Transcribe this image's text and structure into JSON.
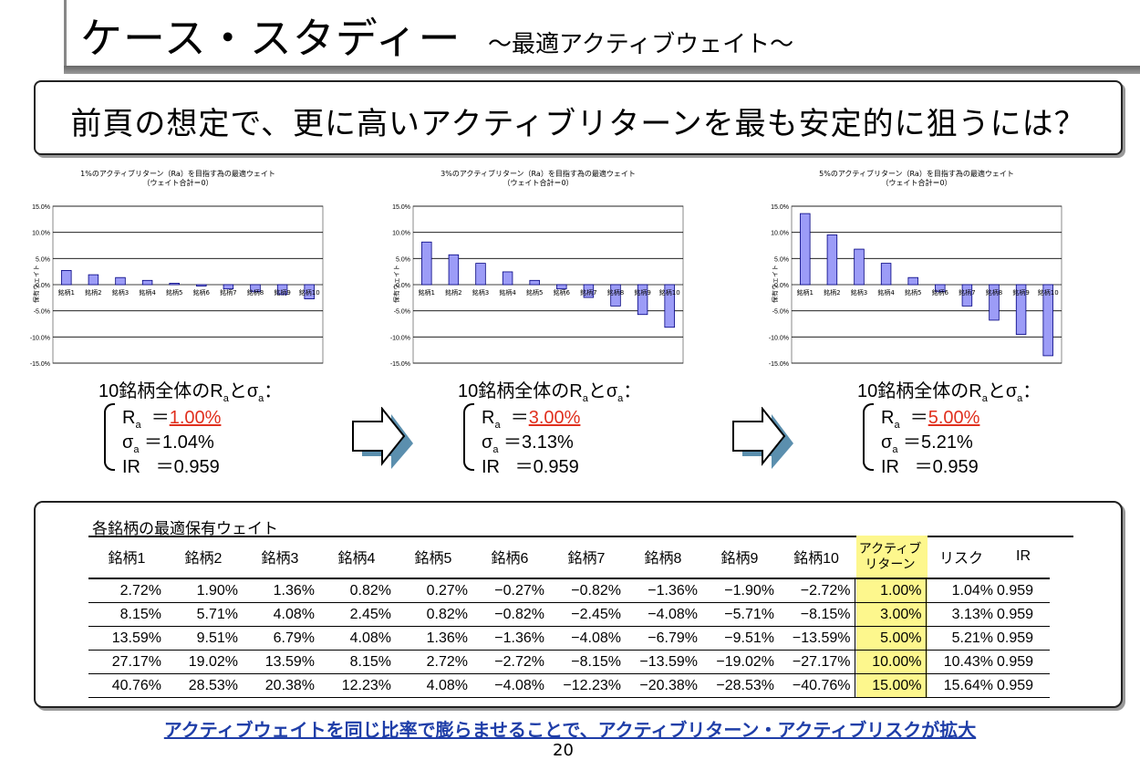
{
  "title": "ケース・スタディー",
  "subtitle": "～最適アクティブウェイト～",
  "question": "前頁の想定で、更に高いアクティブリターンを最も安定的に狙うには？",
  "chart_data": [
    {
      "type": "bar",
      "title": "1%のアクティブリターン（Ra）を目指す為の最適ウェイト",
      "subtitle": "（ウェイト合計＝0）",
      "ylabel": "保有ウェイト",
      "categories": [
        "銘柄1",
        "銘柄2",
        "銘柄3",
        "銘柄4",
        "銘柄5",
        "銘柄6",
        "銘柄7",
        "銘柄8",
        "銘柄9",
        "銘柄10"
      ],
      "values": [
        2.72,
        1.9,
        1.36,
        0.82,
        0.27,
        -0.27,
        -0.82,
        -1.36,
        -1.9,
        -2.72
      ],
      "ylim": [
        -15,
        15
      ],
      "yticks": [
        "15.0%",
        "10.0%",
        "5.0%",
        "0.0%",
        "-5.0%",
        "-10.0%",
        "-15.0%"
      ]
    },
    {
      "type": "bar",
      "title": "3%のアクティブリターン（Ra）を目指す為の最適ウェイト",
      "subtitle": "（ウェイト合計＝0）",
      "ylabel": "保有ウェイト",
      "categories": [
        "銘柄1",
        "銘柄2",
        "銘柄3",
        "銘柄4",
        "銘柄5",
        "銘柄6",
        "銘柄7",
        "銘柄8",
        "銘柄9",
        "銘柄10"
      ],
      "values": [
        8.15,
        5.71,
        4.08,
        2.45,
        0.82,
        -0.82,
        -2.45,
        -4.08,
        -5.71,
        -8.15
      ],
      "ylim": [
        -15,
        15
      ],
      "yticks": [
        "15.0%",
        "10.0%",
        "5.0%",
        "0.0%",
        "-5.0%",
        "-10.0%",
        "-15.0%"
      ]
    },
    {
      "type": "bar",
      "title": "5%のアクティブリターン（Ra）を目指す為の最適ウェイト",
      "subtitle": "（ウェイト合計＝0）",
      "ylabel": "保有ウェイト",
      "categories": [
        "銘柄1",
        "銘柄2",
        "銘柄3",
        "銘柄4",
        "銘柄5",
        "銘柄6",
        "銘柄7",
        "銘柄8",
        "銘柄9",
        "銘柄10"
      ],
      "values": [
        13.59,
        9.51,
        6.79,
        4.08,
        1.36,
        -1.36,
        -4.08,
        -6.79,
        -9.51,
        -13.59
      ],
      "ylim": [
        -15,
        15
      ],
      "yticks": [
        "15.0%",
        "10.0%",
        "5.0%",
        "0.0%",
        "-5.0%",
        "-10.0%",
        "-15.0%"
      ]
    }
  ],
  "stats_head": "10銘柄全体のR",
  "stats_head_sub": "a",
  "stats_head_mid": "とσ",
  "stats_head_sub2": "a",
  "stats_head_end": "：",
  "ra_label": "R",
  "sigma_label": "σ",
  "sub_a": "a",
  "ir_label": "IR",
  "stats": [
    {
      "ra": "1.00%",
      "sigma": "1.04%",
      "ir": "0.959"
    },
    {
      "ra": "3.00%",
      "sigma": "3.13%",
      "ir": "0.959"
    },
    {
      "ra": "5.00%",
      "sigma": "5.21%",
      "ir": "0.959"
    }
  ],
  "eq": "＝",
  "table_title": "各銘柄の最適保有ウェイト",
  "headers": [
    "銘柄1",
    "銘柄2",
    "銘柄3",
    "銘柄4",
    "銘柄5",
    "銘柄6",
    "銘柄7",
    "銘柄8",
    "銘柄9",
    "銘柄10"
  ],
  "header_active_1": "アクティブ",
  "header_active_2": "リターン",
  "header_risk": "リスク",
  "header_ir": "IR",
  "rows": [
    [
      "2.72%",
      "1.90%",
      "1.36%",
      "0.82%",
      "0.27%",
      "−0.27%",
      "−0.82%",
      "−1.36%",
      "−1.90%",
      "−2.72%",
      "1.00%",
      "1.04%",
      "0.959"
    ],
    [
      "8.15%",
      "5.71%",
      "4.08%",
      "2.45%",
      "0.82%",
      "−0.82%",
      "−2.45%",
      "−4.08%",
      "−5.71%",
      "−8.15%",
      "3.00%",
      "3.13%",
      "0.959"
    ],
    [
      "13.59%",
      "9.51%",
      "6.79%",
      "4.08%",
      "1.36%",
      "−1.36%",
      "−4.08%",
      "−6.79%",
      "−9.51%",
      "−13.59%",
      "5.00%",
      "5.21%",
      "0.959"
    ],
    [
      "27.17%",
      "19.02%",
      "13.59%",
      "8.15%",
      "2.72%",
      "−2.72%",
      "−8.15%",
      "−13.59%",
      "−19.02%",
      "−27.17%",
      "10.00%",
      "10.43%",
      "0.959"
    ],
    [
      "40.76%",
      "28.53%",
      "20.38%",
      "12.23%",
      "4.08%",
      "−4.08%",
      "−12.23%",
      "−20.38%",
      "−28.53%",
      "−40.76%",
      "15.00%",
      "15.64%",
      "0.959"
    ]
  ],
  "footer": "アクティブウェイトを同じ比率で膨らませることで、アクティブリターン・アクティブリスクが拡大",
  "page_number": "20",
  "colors": {
    "bar_fill": "#9c9cf7",
    "bar_stroke": "#000080",
    "highlight": "#fdf78d",
    "red": "#e0301e",
    "footer": "#1f3ea8"
  }
}
